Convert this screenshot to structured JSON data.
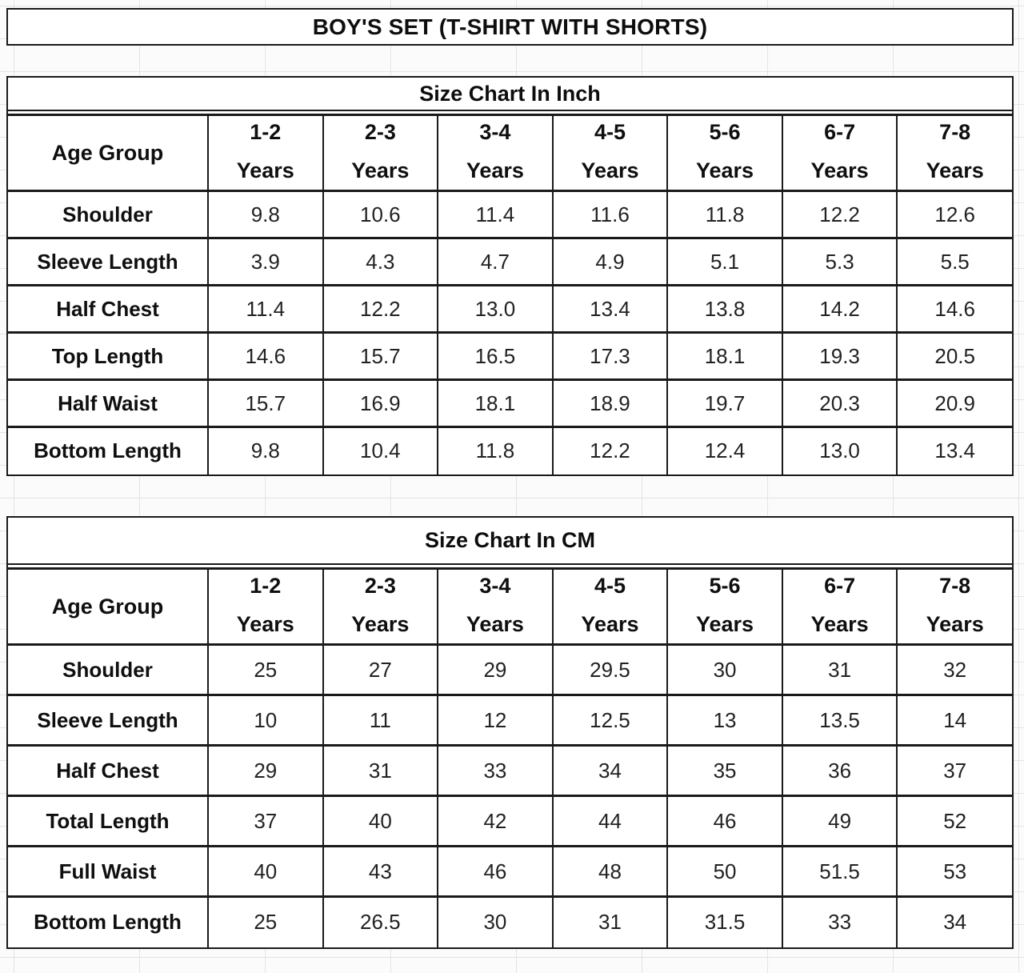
{
  "title": "BOY'S SET (T-SHIRT WITH SHORTS)",
  "age_group_label": "Age Group",
  "age_groups": [
    {
      "range": "1-2",
      "unit": "Years"
    },
    {
      "range": "2-3",
      "unit": "Years"
    },
    {
      "range": "3-4",
      "unit": "Years"
    },
    {
      "range": "4-5",
      "unit": "Years"
    },
    {
      "range": "5-6",
      "unit": "Years"
    },
    {
      "range": "6-7",
      "unit": "Years"
    },
    {
      "range": "7-8",
      "unit": "Years"
    }
  ],
  "inch_table": {
    "title": "Size Chart In Inch",
    "rows": [
      {
        "label": "Shoulder",
        "values": [
          "9.8",
          "10.6",
          "11.4",
          "11.6",
          "11.8",
          "12.2",
          "12.6"
        ]
      },
      {
        "label": "Sleeve Length",
        "values": [
          "3.9",
          "4.3",
          "4.7",
          "4.9",
          "5.1",
          "5.3",
          "5.5"
        ]
      },
      {
        "label": "Half Chest",
        "values": [
          "11.4",
          "12.2",
          "13.0",
          "13.4",
          "13.8",
          "14.2",
          "14.6"
        ]
      },
      {
        "label": "Top Length",
        "values": [
          "14.6",
          "15.7",
          "16.5",
          "17.3",
          "18.1",
          "19.3",
          "20.5"
        ]
      },
      {
        "label": "Half Waist",
        "values": [
          "15.7",
          "16.9",
          "18.1",
          "18.9",
          "19.7",
          "20.3",
          "20.9"
        ]
      },
      {
        "label": "Bottom Length",
        "values": [
          "9.8",
          "10.4",
          "11.8",
          "12.2",
          "12.4",
          "13.0",
          "13.4"
        ]
      }
    ]
  },
  "cm_table": {
    "title": "Size Chart In CM",
    "rows": [
      {
        "label": "Shoulder",
        "values": [
          "25",
          "27",
          "29",
          "29.5",
          "30",
          "31",
          "32"
        ]
      },
      {
        "label": "Sleeve Length",
        "values": [
          "10",
          "11",
          "12",
          "12.5",
          "13",
          "13.5",
          "14"
        ]
      },
      {
        "label": "Half Chest",
        "values": [
          "29",
          "31",
          "33",
          "34",
          "35",
          "36",
          "37"
        ]
      },
      {
        "label": "Total Length",
        "values": [
          "37",
          "40",
          "42",
          "44",
          "46",
          "49",
          "52"
        ]
      },
      {
        "label": "Full Waist",
        "values": [
          "40",
          "43",
          "46",
          "48",
          "50",
          "51.5",
          "53"
        ]
      },
      {
        "label": "Bottom Length",
        "values": [
          "25",
          "26.5",
          "30",
          "31",
          "31.5",
          "33",
          "34"
        ]
      }
    ]
  }
}
